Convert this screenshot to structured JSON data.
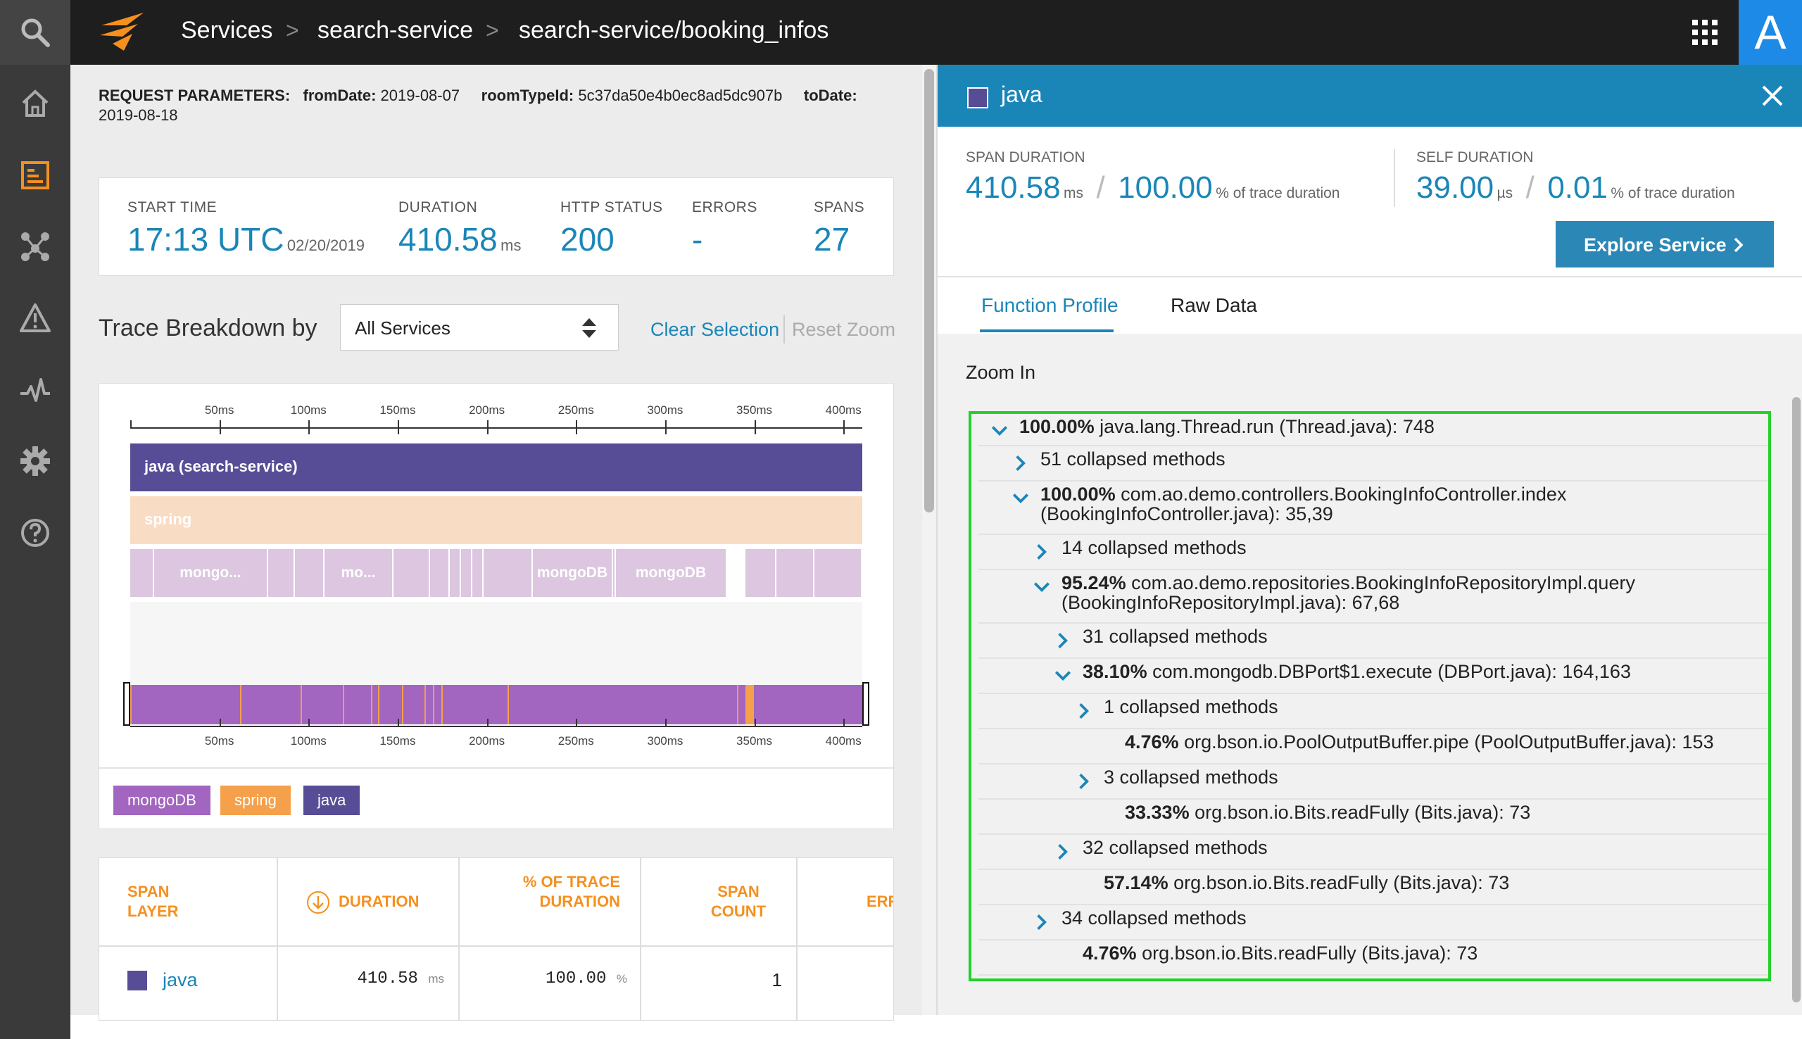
{
  "breadcrumbs": [
    "Services",
    "search-service",
    "search-service/booking_infos"
  ],
  "user_avatar": "A",
  "request_params": {
    "label": "REQUEST PARAMETERS:",
    "from_key": "fromDate:",
    "from_val": "2019-08-07",
    "room_key": "roomTypeId:",
    "room_val": "5c37da50e4b0ec8ad5dc907b",
    "to_key": "toDate:",
    "to_val": "2019-08-18"
  },
  "summary": {
    "start_label": "START TIME",
    "start_time": "17:13 UTC",
    "start_date": "02/20/2019",
    "duration_label": "DURATION",
    "duration": "410.58",
    "duration_unit": "ms",
    "http_label": "HTTP STATUS",
    "http": "200",
    "errors_label": "ERRORS",
    "errors": "-",
    "spans_label": "SPANS",
    "spans": "27"
  },
  "breakdown": {
    "title": "Trace Breakdown by",
    "select_value": "All Services",
    "clear": "Clear Selection",
    "reset": "Reset Zoom"
  },
  "timeline": {
    "ticks": [
      "50ms",
      "100ms",
      "150ms",
      "200ms",
      "250ms",
      "300ms",
      "350ms",
      "400ms"
    ],
    "java_bar": "java (search-service)",
    "spring_bar": "spring",
    "mongo_labels": [
      "mongo...",
      "mo...",
      "mongoDB",
      "mongoDB"
    ]
  },
  "legend": [
    "mongoDB",
    "spring",
    "java"
  ],
  "colors": {
    "java": "#574d96",
    "spring": "#f9dcc4",
    "mongo_light": "#dcc6e0",
    "mongo": "#a265c0",
    "orange": "#f5901f",
    "accent": "#1a86b8",
    "highlight": "#23d12a"
  },
  "span_table": {
    "headers": [
      "SPAN LAYER",
      "DURATION",
      "% OF TRACE DURATION",
      "SPAN COUNT",
      "ERR"
    ],
    "row": {
      "layer": "java",
      "duration": "410.58",
      "duration_unit": "ms",
      "pct": "100.00",
      "pct_unit": "%",
      "count": "1"
    }
  },
  "panel": {
    "title": "java",
    "span_label": "SPAN DURATION",
    "span_value": "410.58",
    "span_unit": "ms",
    "span_pct": "100.00",
    "span_pct_label": "% of trace duration",
    "self_label": "SELF DURATION",
    "self_value": "39.00",
    "self_unit": "µs",
    "self_pct": "0.01",
    "self_pct_label": "% of trace duration",
    "explore_button": "Explore Service",
    "tabs": [
      "Function Profile",
      "Raw Data"
    ],
    "zoom": "Zoom In"
  },
  "function_profile": [
    {
      "chev": "down",
      "pct": "100.00%",
      "text": "java.lang.Thread.run (Thread.java): 748",
      "text2": ""
    },
    {
      "chev": "right",
      "pct": "",
      "text": "51 collapsed methods",
      "text2": ""
    },
    {
      "chev": "down",
      "pct": "100.00%",
      "text": "com.ao.demo.controllers.BookingInfoController.index",
      "text2": "(BookingInfoController.java): 35,39"
    },
    {
      "chev": "right",
      "pct": "",
      "text": "14 collapsed methods",
      "text2": ""
    },
    {
      "chev": "down",
      "pct": "95.24%",
      "text": "com.ao.demo.repositories.BookingInfoRepositoryImpl.query",
      "text2": "(BookingInfoRepositoryImpl.java): 67,68"
    },
    {
      "chev": "right",
      "pct": "",
      "text": "31 collapsed methods",
      "text2": ""
    },
    {
      "chev": "down",
      "pct": "38.10%",
      "text": "com.mongodb.DBPort$1.execute (DBPort.java): 164,163",
      "text2": ""
    },
    {
      "chev": "right",
      "pct": "",
      "text": "1 collapsed methods",
      "text2": ""
    },
    {
      "chev": "",
      "pct": "4.76%",
      "text": "org.bson.io.PoolOutputBuffer.pipe (PoolOutputBuffer.java): 153",
      "text2": ""
    },
    {
      "chev": "right",
      "pct": "",
      "text": "3 collapsed methods",
      "text2": ""
    },
    {
      "chev": "",
      "pct": "33.33%",
      "text": "org.bson.io.Bits.readFully (Bits.java): 73",
      "text2": ""
    },
    {
      "chev": "right",
      "pct": "",
      "text": "32 collapsed methods",
      "text2": ""
    },
    {
      "chev": "",
      "pct": "57.14%",
      "text": "org.bson.io.Bits.readFully (Bits.java): 73",
      "text2": ""
    },
    {
      "chev": "right",
      "pct": "",
      "text": "34 collapsed methods",
      "text2": ""
    },
    {
      "chev": "",
      "pct": "4.76%",
      "text": "org.bson.io.Bits.readFully (Bits.java): 73",
      "text2": ""
    }
  ]
}
